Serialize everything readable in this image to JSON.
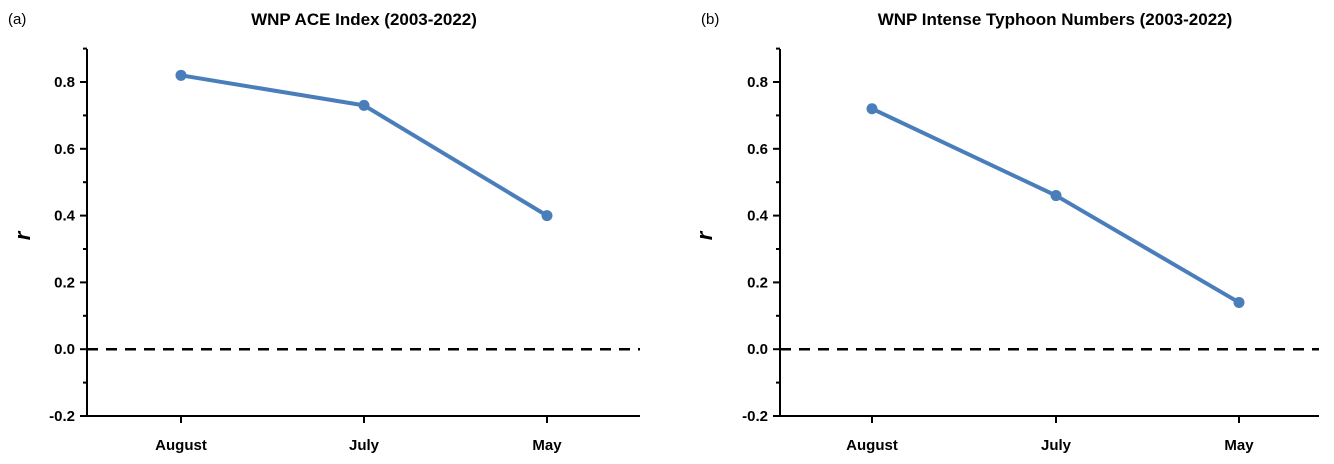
{
  "figure": {
    "background": "#ffffff",
    "line_color": "#4a7ebb",
    "zero_line_color": "#000000"
  },
  "chart_data": [
    {
      "type": "line",
      "panel_label": "(a)",
      "title": "WNP ACE Index (2003-2022)",
      "xlabel": "",
      "ylabel": "r",
      "categories": [
        "August",
        "July",
        "May"
      ],
      "series": [
        {
          "values": [
            0.82,
            0.73,
            0.4
          ]
        }
      ],
      "ylim": [
        -0.2,
        0.9
      ],
      "yticks": [
        -0.2,
        0.0,
        0.2,
        0.4,
        0.6,
        0.8
      ],
      "ytick_labels": [
        "-0.2",
        "0.0",
        "0.2",
        "0.4",
        "0.6",
        "0.8"
      ],
      "reference_line": {
        "y": 0.0,
        "style": "dashed"
      },
      "grid": false,
      "legend": "none"
    },
    {
      "type": "line",
      "panel_label": "(b)",
      "title": "WNP Intense Typhoon Numbers (2003-2022)",
      "xlabel": "",
      "ylabel": "r",
      "categories": [
        "August",
        "July",
        "May"
      ],
      "series": [
        {
          "values": [
            0.72,
            0.46,
            0.14
          ]
        }
      ],
      "ylim": [
        -0.2,
        0.9
      ],
      "yticks": [
        -0.2,
        0.0,
        0.2,
        0.4,
        0.6,
        0.8
      ],
      "ytick_labels": [
        "-0.2",
        "0.0",
        "0.2",
        "0.4",
        "0.6",
        "0.8"
      ],
      "reference_line": {
        "y": 0.0,
        "style": "dashed"
      },
      "grid": false,
      "legend": "none"
    }
  ]
}
